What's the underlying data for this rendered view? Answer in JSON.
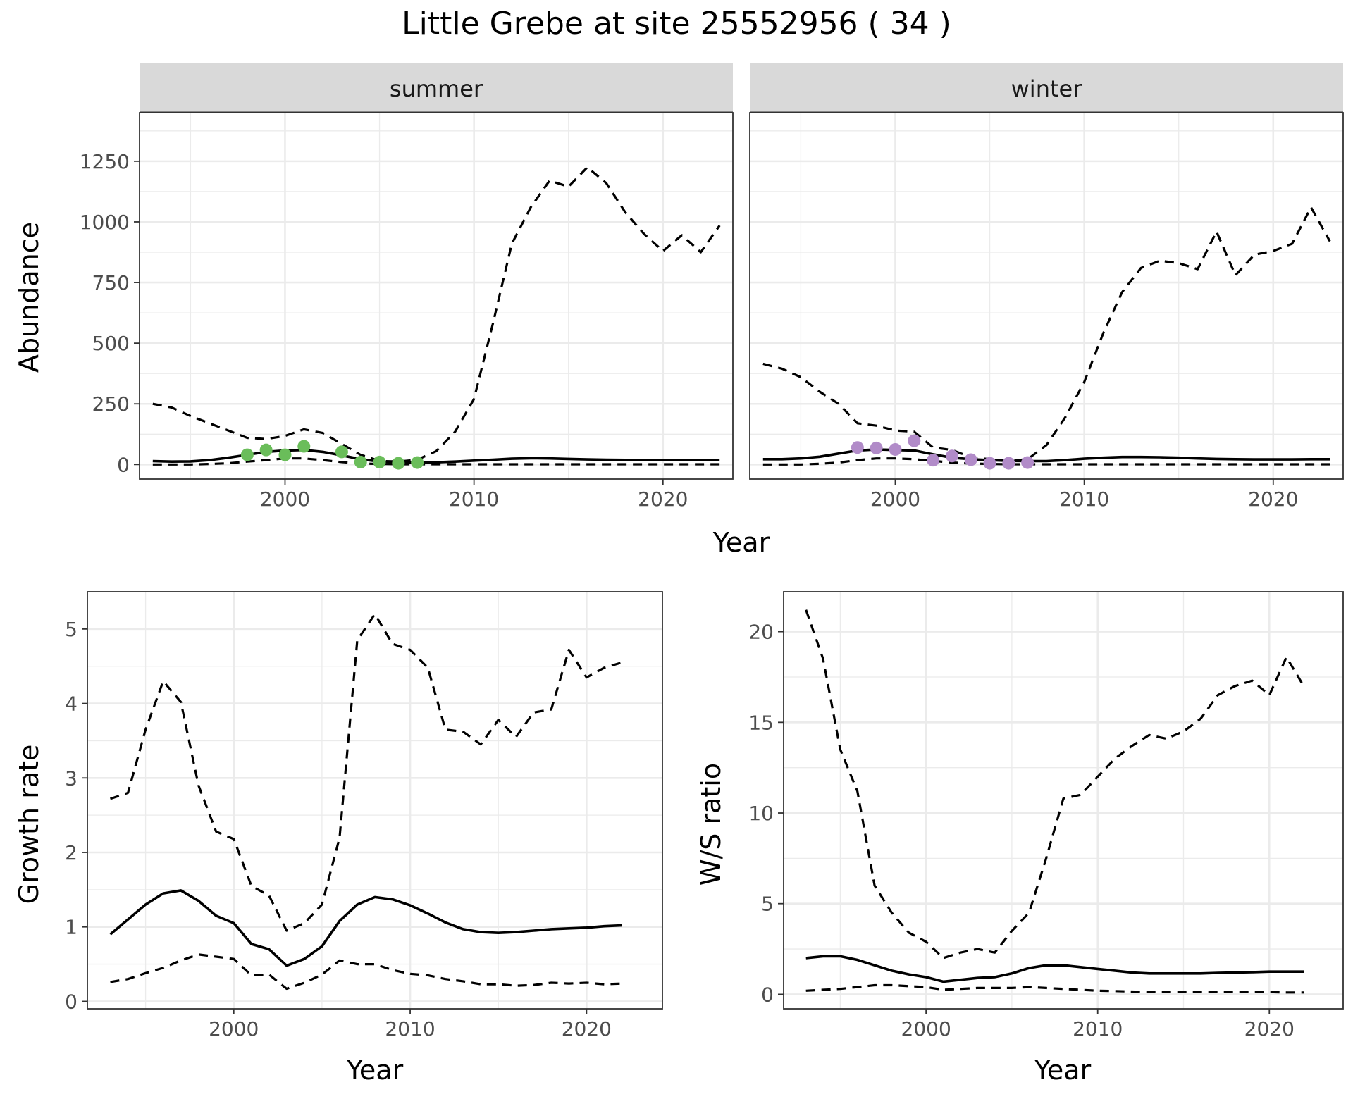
{
  "figure": {
    "title": "Little Grebe at site 25552956 ( 34 )"
  },
  "chart_data": [
    {
      "type": "line",
      "panel": "abundance-summer",
      "strip": "summer",
      "xlabel": "Year",
      "ylabel": "Abundance",
      "xlim": [
        1992.3,
        2023.7
      ],
      "ylim": [
        -60,
        1450
      ],
      "xticks": [
        2000,
        2010,
        2020
      ],
      "yticks": [
        0,
        250,
        500,
        750,
        1000,
        1250
      ],
      "grid": true,
      "point_color": "#6abd5a",
      "series": [
        {
          "role": "estimate",
          "x": [
            1993,
            1994,
            1995,
            1996,
            1997,
            1998,
            1999,
            2000,
            2001,
            2002,
            2003,
            2004,
            2005,
            2006,
            2007,
            2008,
            2009,
            2010,
            2011,
            2012,
            2013,
            2014,
            2015,
            2016,
            2017,
            2018,
            2019,
            2020,
            2021,
            2022,
            2023
          ],
          "y": [
            14,
            12,
            13,
            18,
            28,
            40,
            52,
            58,
            60,
            52,
            38,
            22,
            12,
            9,
            8,
            9,
            12,
            16,
            20,
            24,
            26,
            25,
            23,
            21,
            20,
            19,
            18,
            18,
            18,
            18,
            18
          ]
        },
        {
          "role": "upper",
          "x": [
            1993,
            1994,
            1995,
            1996,
            1997,
            1998,
            1999,
            2000,
            2001,
            2002,
            2003,
            2004,
            2005,
            2006,
            2007,
            2008,
            2009,
            2010,
            2011,
            2012,
            2013,
            2014,
            2015,
            2016,
            2017,
            2018,
            2019,
            2020,
            2021,
            2022,
            2023
          ],
          "y": [
            250,
            235,
            200,
            170,
            140,
            110,
            105,
            118,
            145,
            130,
            85,
            40,
            15,
            12,
            20,
            55,
            135,
            270,
            580,
            910,
            1060,
            1170,
            1145,
            1225,
            1160,
            1040,
            950,
            880,
            945,
            875,
            985
          ]
        },
        {
          "role": "lower",
          "x": [
            1993,
            1994,
            1995,
            1996,
            1997,
            1998,
            1999,
            2000,
            2001,
            2002,
            2003,
            2004,
            2005,
            2006,
            2007,
            2008,
            2009,
            2010,
            2011,
            2012,
            2013,
            2014,
            2015,
            2016,
            2017,
            2018,
            2019,
            2020,
            2021,
            2022,
            2023
          ],
          "y": [
            0,
            0,
            0,
            2,
            5,
            12,
            18,
            25,
            25,
            18,
            10,
            4,
            2,
            1,
            1,
            1,
            1,
            1,
            1,
            1,
            1,
            1,
            1,
            1,
            1,
            1,
            1,
            1,
            1,
            1,
            1
          ]
        },
        {
          "role": "observed",
          "x": [
            1998,
            1999,
            2000,
            2001,
            2003,
            2004,
            2005,
            2006,
            2007
          ],
          "y": [
            40,
            60,
            40,
            75,
            52,
            10,
            10,
            5,
            8
          ]
        }
      ]
    },
    {
      "type": "line",
      "panel": "abundance-winter",
      "strip": "winter",
      "xlabel": "Year",
      "ylabel": "",
      "xlim": [
        1992.3,
        2023.7
      ],
      "ylim": [
        -60,
        1450
      ],
      "xticks": [
        2000,
        2010,
        2020
      ],
      "yticks": [
        0,
        250,
        500,
        750,
        1000,
        1250
      ],
      "grid": true,
      "point_color": "#b18bc8",
      "series": [
        {
          "role": "estimate",
          "x": [
            1993,
            1994,
            1995,
            1996,
            1997,
            1998,
            1999,
            2000,
            2001,
            2002,
            2003,
            2004,
            2005,
            2006,
            2007,
            2008,
            2009,
            2010,
            2011,
            2012,
            2013,
            2014,
            2015,
            2016,
            2017,
            2018,
            2019,
            2020,
            2021,
            2022,
            2023
          ],
          "y": [
            22,
            22,
            25,
            32,
            45,
            58,
            62,
            60,
            58,
            42,
            28,
            22,
            18,
            15,
            14,
            14,
            18,
            24,
            28,
            31,
            31,
            30,
            28,
            25,
            23,
            22,
            21,
            21,
            21,
            22,
            22
          ]
        },
        {
          "role": "upper",
          "x": [
            1993,
            1994,
            1995,
            1996,
            1997,
            1998,
            1999,
            2000,
            2001,
            2002,
            2003,
            2004,
            2005,
            2006,
            2007,
            2008,
            2009,
            2010,
            2011,
            2012,
            2013,
            2014,
            2015,
            2016,
            2017,
            2018,
            2019,
            2020,
            2021,
            2022,
            2023
          ],
          "y": [
            415,
            395,
            360,
            300,
            250,
            170,
            160,
            140,
            135,
            70,
            60,
            30,
            22,
            15,
            22,
            80,
            195,
            340,
            540,
            710,
            810,
            840,
            830,
            805,
            960,
            780,
            865,
            880,
            910,
            1060,
            920
          ]
        },
        {
          "role": "lower",
          "x": [
            1993,
            1994,
            1995,
            1996,
            1997,
            1998,
            1999,
            2000,
            2001,
            2002,
            2003,
            2004,
            2005,
            2006,
            2007,
            2008,
            2009,
            2010,
            2011,
            2012,
            2013,
            2014,
            2015,
            2016,
            2017,
            2018,
            2019,
            2020,
            2021,
            2022,
            2023
          ],
          "y": [
            0,
            0,
            0,
            3,
            8,
            18,
            25,
            25,
            22,
            15,
            8,
            4,
            2,
            1,
            1,
            1,
            1,
            1,
            1,
            1,
            1,
            1,
            1,
            1,
            1,
            1,
            1,
            1,
            1,
            1,
            1
          ]
        },
        {
          "role": "observed",
          "x": [
            1998,
            1999,
            2000,
            2001,
            2002,
            2003,
            2004,
            2005,
            2006,
            2007
          ],
          "y": [
            70,
            68,
            62,
            98,
            18,
            35,
            20,
            5,
            5,
            8
          ]
        }
      ]
    },
    {
      "type": "line",
      "panel": "growth-rate",
      "xlabel": "Year",
      "ylabel": "Growth rate",
      "xlim": [
        1991.7,
        2024.3
      ],
      "ylim": [
        -0.1,
        5.5
      ],
      "xticks": [
        2000,
        2010,
        2020
      ],
      "yticks": [
        0,
        1,
        2,
        3,
        4,
        5
      ],
      "grid": true,
      "series": [
        {
          "role": "estimate",
          "x": [
            1993,
            1994,
            1995,
            1996,
            1997,
            1998,
            1999,
            2000,
            2001,
            2002,
            2003,
            2004,
            2005,
            2006,
            2007,
            2008,
            2009,
            2010,
            2011,
            2012,
            2013,
            2014,
            2015,
            2016,
            2017,
            2018,
            2019,
            2020,
            2021,
            2022
          ],
          "y": [
            0.9,
            1.1,
            1.3,
            1.45,
            1.49,
            1.35,
            1.15,
            1.05,
            0.77,
            0.7,
            0.48,
            0.57,
            0.74,
            1.08,
            1.3,
            1.4,
            1.37,
            1.29,
            1.18,
            1.06,
            0.97,
            0.93,
            0.92,
            0.93,
            0.95,
            0.97,
            0.98,
            0.99,
            1.01,
            1.02
          ]
        },
        {
          "role": "upper",
          "x": [
            1993,
            1994,
            1995,
            1996,
            1997,
            1998,
            1999,
            2000,
            2001,
            2002,
            2003,
            2004,
            2005,
            2006,
            2007,
            2008,
            2009,
            2010,
            2011,
            2012,
            2013,
            2014,
            2015,
            2016,
            2017,
            2018,
            2019,
            2020,
            2021,
            2022
          ],
          "y": [
            2.72,
            2.8,
            3.65,
            4.3,
            4.02,
            2.9,
            2.28,
            2.18,
            1.55,
            1.42,
            0.95,
            1.05,
            1.3,
            2.2,
            4.85,
            5.2,
            4.8,
            4.72,
            4.48,
            3.65,
            3.62,
            3.45,
            3.78,
            3.55,
            3.88,
            3.92,
            4.72,
            4.35,
            4.48,
            4.55
          ]
        },
        {
          "role": "lower",
          "x": [
            1993,
            1994,
            1995,
            1996,
            1997,
            1998,
            1999,
            2000,
            2001,
            2002,
            2003,
            2004,
            2005,
            2006,
            2007,
            2008,
            2009,
            2010,
            2011,
            2012,
            2013,
            2014,
            2015,
            2016,
            2017,
            2018,
            2019,
            2020,
            2021,
            2022
          ],
          "y": [
            0.26,
            0.3,
            0.38,
            0.45,
            0.55,
            0.63,
            0.6,
            0.57,
            0.35,
            0.36,
            0.17,
            0.25,
            0.36,
            0.55,
            0.5,
            0.5,
            0.42,
            0.37,
            0.35,
            0.3,
            0.27,
            0.23,
            0.23,
            0.21,
            0.22,
            0.25,
            0.24,
            0.25,
            0.23,
            0.24
          ]
        }
      ]
    },
    {
      "type": "line",
      "panel": "ws-ratio",
      "xlabel": "Year",
      "ylabel": "W/S ratio",
      "xlim": [
        1991.7,
        2024.3
      ],
      "ylim": [
        -0.8,
        22.2
      ],
      "xticks": [
        2000,
        2010,
        2020
      ],
      "yticks": [
        0,
        5,
        10,
        15,
        20
      ],
      "grid": true,
      "series": [
        {
          "role": "estimate",
          "x": [
            1993,
            1994,
            1995,
            1996,
            1997,
            1998,
            1999,
            2000,
            2001,
            2002,
            2003,
            2004,
            2005,
            2006,
            2007,
            2008,
            2009,
            2010,
            2011,
            2012,
            2013,
            2014,
            2015,
            2016,
            2017,
            2018,
            2019,
            2020,
            2021,
            2022
          ],
          "y": [
            2.0,
            2.1,
            2.1,
            1.9,
            1.6,
            1.3,
            1.1,
            0.95,
            0.7,
            0.8,
            0.9,
            0.95,
            1.15,
            1.45,
            1.6,
            1.6,
            1.5,
            1.4,
            1.3,
            1.2,
            1.15,
            1.15,
            1.15,
            1.15,
            1.18,
            1.2,
            1.22,
            1.25,
            1.25,
            1.25
          ]
        },
        {
          "role": "upper",
          "x": [
            1993,
            1994,
            1995,
            1996,
            1997,
            1998,
            1999,
            2000,
            2001,
            2002,
            2003,
            2004,
            2005,
            2006,
            2007,
            2008,
            2009,
            2010,
            2011,
            2012,
            2013,
            2014,
            2015,
            2016,
            2017,
            2018,
            2019,
            2020,
            2021,
            2022
          ],
          "y": [
            21.2,
            18.5,
            13.5,
            11.2,
            6.0,
            4.5,
            3.4,
            2.9,
            2.0,
            2.3,
            2.5,
            2.3,
            3.5,
            4.5,
            7.5,
            10.8,
            11.0,
            12.0,
            13.0,
            13.7,
            14.3,
            14.1,
            14.5,
            15.2,
            16.5,
            17.0,
            17.3,
            16.5,
            18.6,
            17.0
          ]
        },
        {
          "role": "lower",
          "x": [
            1993,
            1994,
            1995,
            1996,
            1997,
            1998,
            1999,
            2000,
            2001,
            2002,
            2003,
            2004,
            2005,
            2006,
            2007,
            2008,
            2009,
            2010,
            2011,
            2012,
            2013,
            2014,
            2015,
            2016,
            2017,
            2018,
            2019,
            2020,
            2021,
            2022
          ],
          "y": [
            0.2,
            0.25,
            0.3,
            0.4,
            0.5,
            0.5,
            0.45,
            0.4,
            0.25,
            0.3,
            0.35,
            0.35,
            0.35,
            0.4,
            0.35,
            0.3,
            0.25,
            0.2,
            0.18,
            0.15,
            0.12,
            0.12,
            0.12,
            0.12,
            0.12,
            0.12,
            0.12,
            0.12,
            0.1,
            0.1
          ]
        }
      ]
    }
  ]
}
